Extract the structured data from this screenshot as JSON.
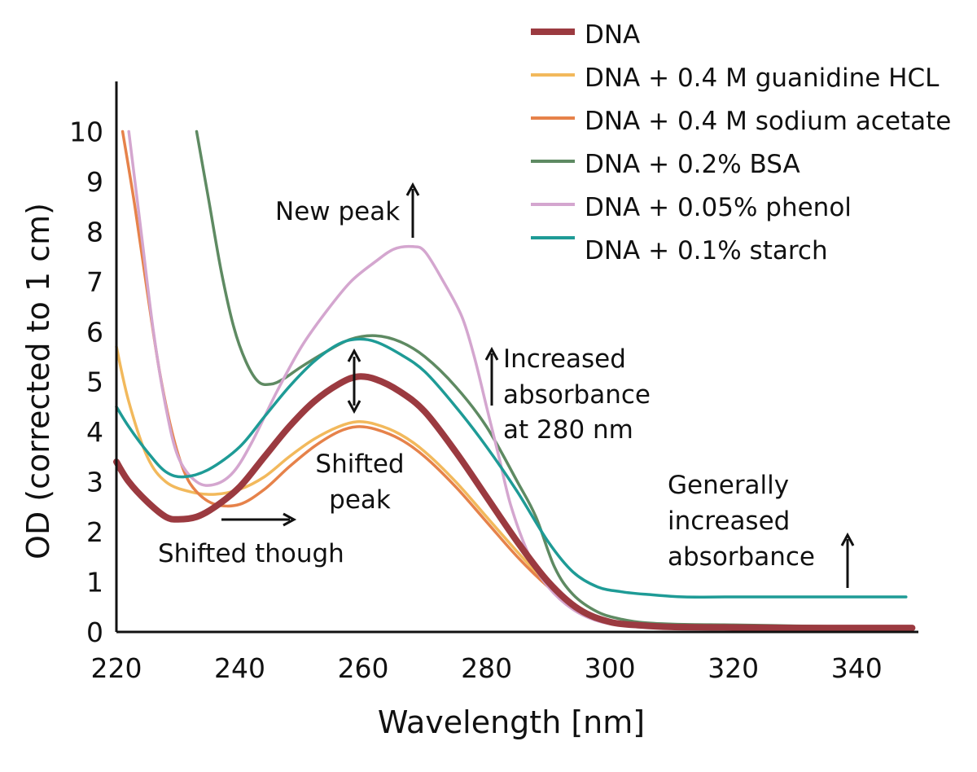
{
  "chart_data": {
    "type": "line",
    "title": "",
    "xlabel": "Wavelength [nm]",
    "ylabel": "OD (corrected to 1 cm)",
    "xlim": [
      220,
      350
    ],
    "ylim": [
      0,
      11
    ],
    "xticks": [
      220,
      240,
      260,
      280,
      300,
      320,
      340
    ],
    "yticks": [
      0,
      1,
      2,
      3,
      4,
      5,
      6,
      7,
      8,
      9,
      10
    ],
    "grid": false,
    "legend_position": "top-right",
    "series": [
      {
        "name": "DNA",
        "color": "#9b3a40",
        "points": [
          [
            220,
            3.4
          ],
          [
            222,
            3.0
          ],
          [
            225,
            2.6
          ],
          [
            228,
            2.3
          ],
          [
            230,
            2.25
          ],
          [
            233,
            2.3
          ],
          [
            236,
            2.5
          ],
          [
            240,
            2.9
          ],
          [
            244,
            3.5
          ],
          [
            248,
            4.1
          ],
          [
            252,
            4.6
          ],
          [
            256,
            4.95
          ],
          [
            259,
            5.1
          ],
          [
            262,
            5.05
          ],
          [
            266,
            4.8
          ],
          [
            270,
            4.4
          ],
          [
            275,
            3.6
          ],
          [
            280,
            2.7
          ],
          [
            285,
            1.8
          ],
          [
            290,
            1.0
          ],
          [
            295,
            0.45
          ],
          [
            300,
            0.2
          ],
          [
            305,
            0.13
          ],
          [
            310,
            0.1
          ],
          [
            320,
            0.09
          ],
          [
            330,
            0.08
          ],
          [
            340,
            0.08
          ],
          [
            349,
            0.08
          ]
        ]
      },
      {
        "name": "DNA + 0.4 M guanidine HCL",
        "color": "#f2b95c",
        "points": [
          [
            220,
            5.7
          ],
          [
            222,
            4.6
          ],
          [
            225,
            3.5
          ],
          [
            228,
            3.0
          ],
          [
            232,
            2.8
          ],
          [
            236,
            2.75
          ],
          [
            240,
            2.85
          ],
          [
            244,
            3.1
          ],
          [
            248,
            3.5
          ],
          [
            252,
            3.85
          ],
          [
            256,
            4.1
          ],
          [
            259,
            4.2
          ],
          [
            262,
            4.15
          ],
          [
            266,
            3.95
          ],
          [
            270,
            3.6
          ],
          [
            275,
            3.0
          ],
          [
            280,
            2.3
          ],
          [
            285,
            1.6
          ],
          [
            290,
            0.95
          ],
          [
            295,
            0.45
          ],
          [
            300,
            0.18
          ],
          [
            305,
            0.12
          ],
          [
            310,
            0.1
          ],
          [
            320,
            0.09
          ],
          [
            340,
            0.08
          ],
          [
            349,
            0.08
          ]
        ]
      },
      {
        "name": "DNA + 0.4 M sodium acetate",
        "color": "#e6824a",
        "points": [
          [
            221,
            10.0
          ],
          [
            223,
            8.5
          ],
          [
            225,
            6.8
          ],
          [
            227,
            5.2
          ],
          [
            229,
            4.0
          ],
          [
            231,
            3.2
          ],
          [
            233,
            2.8
          ],
          [
            236,
            2.55
          ],
          [
            240,
            2.55
          ],
          [
            244,
            2.85
          ],
          [
            248,
            3.3
          ],
          [
            252,
            3.7
          ],
          [
            256,
            4.0
          ],
          [
            259,
            4.1
          ],
          [
            262,
            4.05
          ],
          [
            266,
            3.85
          ],
          [
            270,
            3.5
          ],
          [
            275,
            2.9
          ],
          [
            280,
            2.2
          ],
          [
            285,
            1.5
          ],
          [
            290,
            0.9
          ],
          [
            295,
            0.42
          ],
          [
            300,
            0.17
          ],
          [
            305,
            0.11
          ],
          [
            310,
            0.09
          ],
          [
            320,
            0.08
          ],
          [
            340,
            0.08
          ],
          [
            349,
            0.08
          ]
        ]
      },
      {
        "name": "DNA + 0.2% BSA",
        "color": "#5e8a62",
        "points": [
          [
            233,
            10.0
          ],
          [
            235,
            8.6
          ],
          [
            237,
            7.2
          ],
          [
            239,
            6.1
          ],
          [
            241,
            5.4
          ],
          [
            243,
            5.0
          ],
          [
            245,
            4.95
          ],
          [
            247,
            5.05
          ],
          [
            250,
            5.3
          ],
          [
            254,
            5.6
          ],
          [
            258,
            5.85
          ],
          [
            262,
            5.92
          ],
          [
            266,
            5.8
          ],
          [
            270,
            5.5
          ],
          [
            275,
            4.9
          ],
          [
            280,
            4.1
          ],
          [
            285,
            3.0
          ],
          [
            288,
            2.3
          ],
          [
            291,
            1.3
          ],
          [
            294,
            0.75
          ],
          [
            298,
            0.4
          ],
          [
            302,
            0.25
          ],
          [
            306,
            0.18
          ],
          [
            312,
            0.15
          ],
          [
            320,
            0.14
          ],
          [
            330,
            0.12
          ],
          [
            340,
            0.1
          ],
          [
            349,
            0.1
          ]
        ]
      },
      {
        "name": "DNA + 0.05% phenol",
        "color": "#d4a6cf",
        "points": [
          [
            222,
            10.0
          ],
          [
            224,
            8.0
          ],
          [
            226,
            6.0
          ],
          [
            228,
            4.5
          ],
          [
            230,
            3.5
          ],
          [
            233,
            3.0
          ],
          [
            236,
            2.95
          ],
          [
            239,
            3.2
          ],
          [
            242,
            3.8
          ],
          [
            246,
            4.8
          ],
          [
            250,
            5.7
          ],
          [
            254,
            6.4
          ],
          [
            258,
            7.0
          ],
          [
            262,
            7.4
          ],
          [
            265,
            7.65
          ],
          [
            268,
            7.7
          ],
          [
            270,
            7.6
          ],
          [
            273,
            7.0
          ],
          [
            276,
            6.3
          ],
          [
            278,
            5.5
          ],
          [
            280,
            4.5
          ],
          [
            282,
            3.5
          ],
          [
            284,
            2.5
          ],
          [
            287,
            1.5
          ],
          [
            290,
            0.9
          ],
          [
            294,
            0.45
          ],
          [
            298,
            0.22
          ],
          [
            302,
            0.14
          ],
          [
            310,
            0.1
          ],
          [
            320,
            0.09
          ],
          [
            340,
            0.08
          ],
          [
            349,
            0.08
          ]
        ]
      },
      {
        "name": "DNA + 0.1% starch",
        "color": "#1e9b96",
        "points": [
          [
            220,
            4.5
          ],
          [
            222,
            4.1
          ],
          [
            225,
            3.6
          ],
          [
            228,
            3.2
          ],
          [
            231,
            3.1
          ],
          [
            235,
            3.25
          ],
          [
            240,
            3.7
          ],
          [
            244,
            4.3
          ],
          [
            248,
            4.9
          ],
          [
            252,
            5.4
          ],
          [
            256,
            5.75
          ],
          [
            259,
            5.85
          ],
          [
            262,
            5.8
          ],
          [
            266,
            5.55
          ],
          [
            270,
            5.2
          ],
          [
            275,
            4.5
          ],
          [
            280,
            3.7
          ],
          [
            285,
            2.8
          ],
          [
            290,
            1.8
          ],
          [
            294,
            1.2
          ],
          [
            298,
            0.9
          ],
          [
            302,
            0.8
          ],
          [
            306,
            0.75
          ],
          [
            312,
            0.7
          ],
          [
            320,
            0.7
          ],
          [
            330,
            0.7
          ],
          [
            340,
            0.7
          ],
          [
            348,
            0.7
          ]
        ]
      }
    ],
    "annotations": {
      "new_peak": "New peak",
      "increased_280": [
        "Increased",
        "absorbance",
        "at 280 nm"
      ],
      "shifted_peak": [
        "Shifted",
        "peak"
      ],
      "shifted_though": "Shifted though",
      "generally_increased": [
        "Generally",
        "increased",
        "absorbance"
      ]
    }
  }
}
